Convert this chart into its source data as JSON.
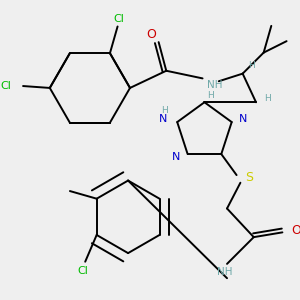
{
  "background_color": "#efefef",
  "atom_colors": {
    "C": "#000000",
    "N": "#0000cc",
    "O": "#cc0000",
    "S": "#cccc00",
    "Cl": "#00bb00",
    "H": "#6fa8a8",
    "bond": "#000000"
  },
  "figsize": [
    3.0,
    3.0
  ],
  "dpi": 100
}
